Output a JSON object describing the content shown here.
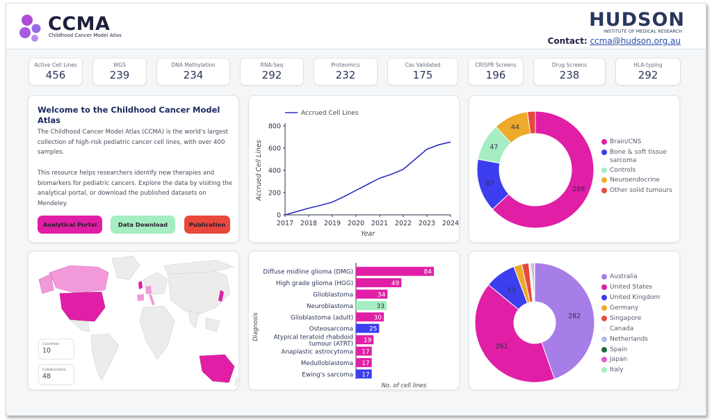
{
  "header": {
    "brand": "CCMA",
    "brand_subtitle": "Childhood Cancer Model Atlas",
    "partner": "HUDSON",
    "partner_subtitle": "INSTITUTE OF MEDICAL RESEARCH",
    "contact_label": "Contact:",
    "contact_email": "ccma@hudson.org.au"
  },
  "stats": [
    {
      "label": "Active Cell Lines",
      "value": "456"
    },
    {
      "label": "WGS",
      "value": "239"
    },
    {
      "label": "DNA Methylation",
      "value": "234"
    },
    {
      "label": "RNA-Seq",
      "value": "292"
    },
    {
      "label": "Proteomics",
      "value": "232"
    },
    {
      "label": "Cas Validated",
      "value": "175"
    },
    {
      "label": "CRISPR Screens",
      "value": "196"
    },
    {
      "label": "Drug Screens",
      "value": "238"
    },
    {
      "label": "HLA-typing",
      "value": "292"
    }
  ],
  "welcome": {
    "title": "Welcome to the Childhood Cancer Model Atlas",
    "para1": "The Childhood Cancer Model Atlas (CCMA) is the world's largest collection of high-risk pediatric cancer cell lines, with over 400 samples.",
    "para2": "This resource helps researchers identify new therapies and biomarkers for pediatric cancers. Explore the data by visiting the analytical portal, or download the published datasets on Mendeley.",
    "buttons": {
      "portal": "Analytical Portal",
      "download": "Data Download",
      "publication": "Publication"
    }
  },
  "colors": {
    "magenta": "#e01fa6",
    "blue": "#3c3ef0",
    "green": "#a5edc2",
    "orange": "#eeaa2b",
    "red": "#e8493c",
    "line": "#2c2fc0"
  },
  "chart_data": [
    {
      "type": "line",
      "legend": "Accrued Cell Lines",
      "xlabel": "Year",
      "ylabel": "Accrued Cell Lines",
      "x": [
        2017,
        2017.5,
        2018,
        2018.5,
        2019,
        2019.5,
        2020,
        2020.5,
        2021,
        2021.5,
        2022,
        2022.5,
        2023,
        2023.5,
        2024
      ],
      "y": [
        0,
        30,
        60,
        85,
        115,
        165,
        220,
        275,
        330,
        365,
        410,
        500,
        590,
        630,
        655
      ],
      "xticks": [
        "2017",
        "2018",
        "2019",
        "2020",
        "2021",
        "2022",
        "2023",
        "2024"
      ],
      "yticks": [
        "0",
        "200",
        "400",
        "600",
        "800"
      ],
      "xlim": [
        2017,
        2024
      ],
      "ylim": [
        0,
        800
      ]
    },
    {
      "type": "pie",
      "labels": [
        "Brain/CNS",
        "Bone & soft tissue sarcoma",
        "Controls",
        "Neuroendocrine",
        "Other solid tumours"
      ],
      "values": [
        288,
        67,
        47,
        44,
        10
      ],
      "colors": [
        "#e01fa6",
        "#3c3ef0",
        "#a5edc2",
        "#eeaa2b",
        "#e8493c"
      ],
      "data_labels": [
        "288",
        "67",
        "47",
        "44",
        ""
      ]
    },
    {
      "type": "bar",
      "orientation": "horizontal",
      "ylabel": "Diagnosis",
      "xlabel": "No. of cell lines",
      "categories": [
        "Diffuse midline glioma (DMG)",
        "High grade glioma (HGG)",
        "Glioblastoma",
        "Neuroblastoma",
        "Glioblastoma (adult)",
        "Osteosarcoma",
        "Atypical teratoid rhabdoid tumour (ATRT)",
        "Anaplastic astrocytoma",
        "Medulloblastoma",
        "Ewing's sarcoma"
      ],
      "values": [
        84,
        49,
        34,
        33,
        30,
        25,
        19,
        17,
        17,
        17
      ],
      "colors": [
        "#e01fa6",
        "#e01fa6",
        "#e01fa6",
        "#a5edc2",
        "#e01fa6",
        "#3c3ef0",
        "#e01fa6",
        "#e01fa6",
        "#e01fa6",
        "#3c3ef0"
      ]
    },
    {
      "type": "pie",
      "labels": [
        "Australia",
        "United States",
        "United Kingdom",
        "Germany",
        "Singapore",
        "Canada",
        "Netherlands",
        "Spain",
        "Japan",
        "Italy"
      ],
      "values": [
        282,
        261,
        53,
        14,
        12,
        2,
        2,
        2,
        3,
        1
      ],
      "colors": [
        "#a77de8",
        "#e01fa6",
        "#3c3ef0",
        "#eeaa2b",
        "#e8493c",
        "#f6f6f6",
        "#a9bde9",
        "#1a6b3f",
        "#e05ec4",
        "#a5edc2"
      ],
      "data_labels": [
        "282",
        "261",
        "53",
        "",
        "",
        "",
        "",
        "",
        "",
        ""
      ]
    }
  ],
  "map": {
    "countries_label": "Countries",
    "countries_value": "10",
    "collaborators_label": "Collaborators",
    "collaborators_value": "48"
  }
}
